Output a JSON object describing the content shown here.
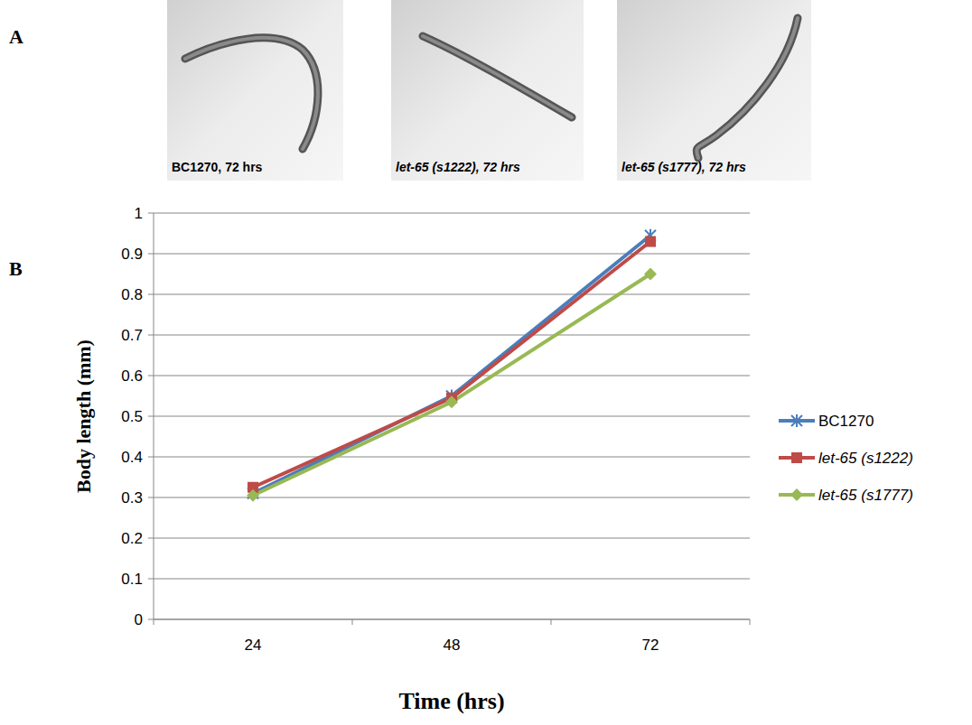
{
  "panel_labels": [
    "A",
    "B"
  ],
  "images": [
    {
      "caption": "BC1270, 72 hrs"
    },
    {
      "caption": "let-65 (s1222), 72 hrs"
    },
    {
      "caption": "let-65 (s1777), 72 hrs"
    }
  ],
  "chart_data": {
    "type": "line",
    "x_label": "Time (hrs)",
    "y_label": "Body length (mm)",
    "categories": [
      "24",
      "48",
      "72"
    ],
    "series": [
      {
        "name": "BC1270",
        "color": "#4a7ebb",
        "marker": "asterisk",
        "values": [
          0.31,
          0.55,
          0.945
        ]
      },
      {
        "name": "let-65 (s1222)",
        "color": "#be4b48",
        "marker": "square",
        "values": [
          0.325,
          0.545,
          0.93
        ]
      },
      {
        "name": "let-65 (s1777)",
        "color": "#98b954",
        "marker": "diamond",
        "values": [
          0.305,
          0.535,
          0.85
        ]
      }
    ],
    "ylim": [
      0,
      1
    ],
    "yticks": [
      0,
      0.1,
      0.2,
      0.3,
      0.4,
      0.5,
      0.6,
      0.7,
      0.8,
      0.9,
      1
    ],
    "grid": true,
    "legend": "right"
  }
}
